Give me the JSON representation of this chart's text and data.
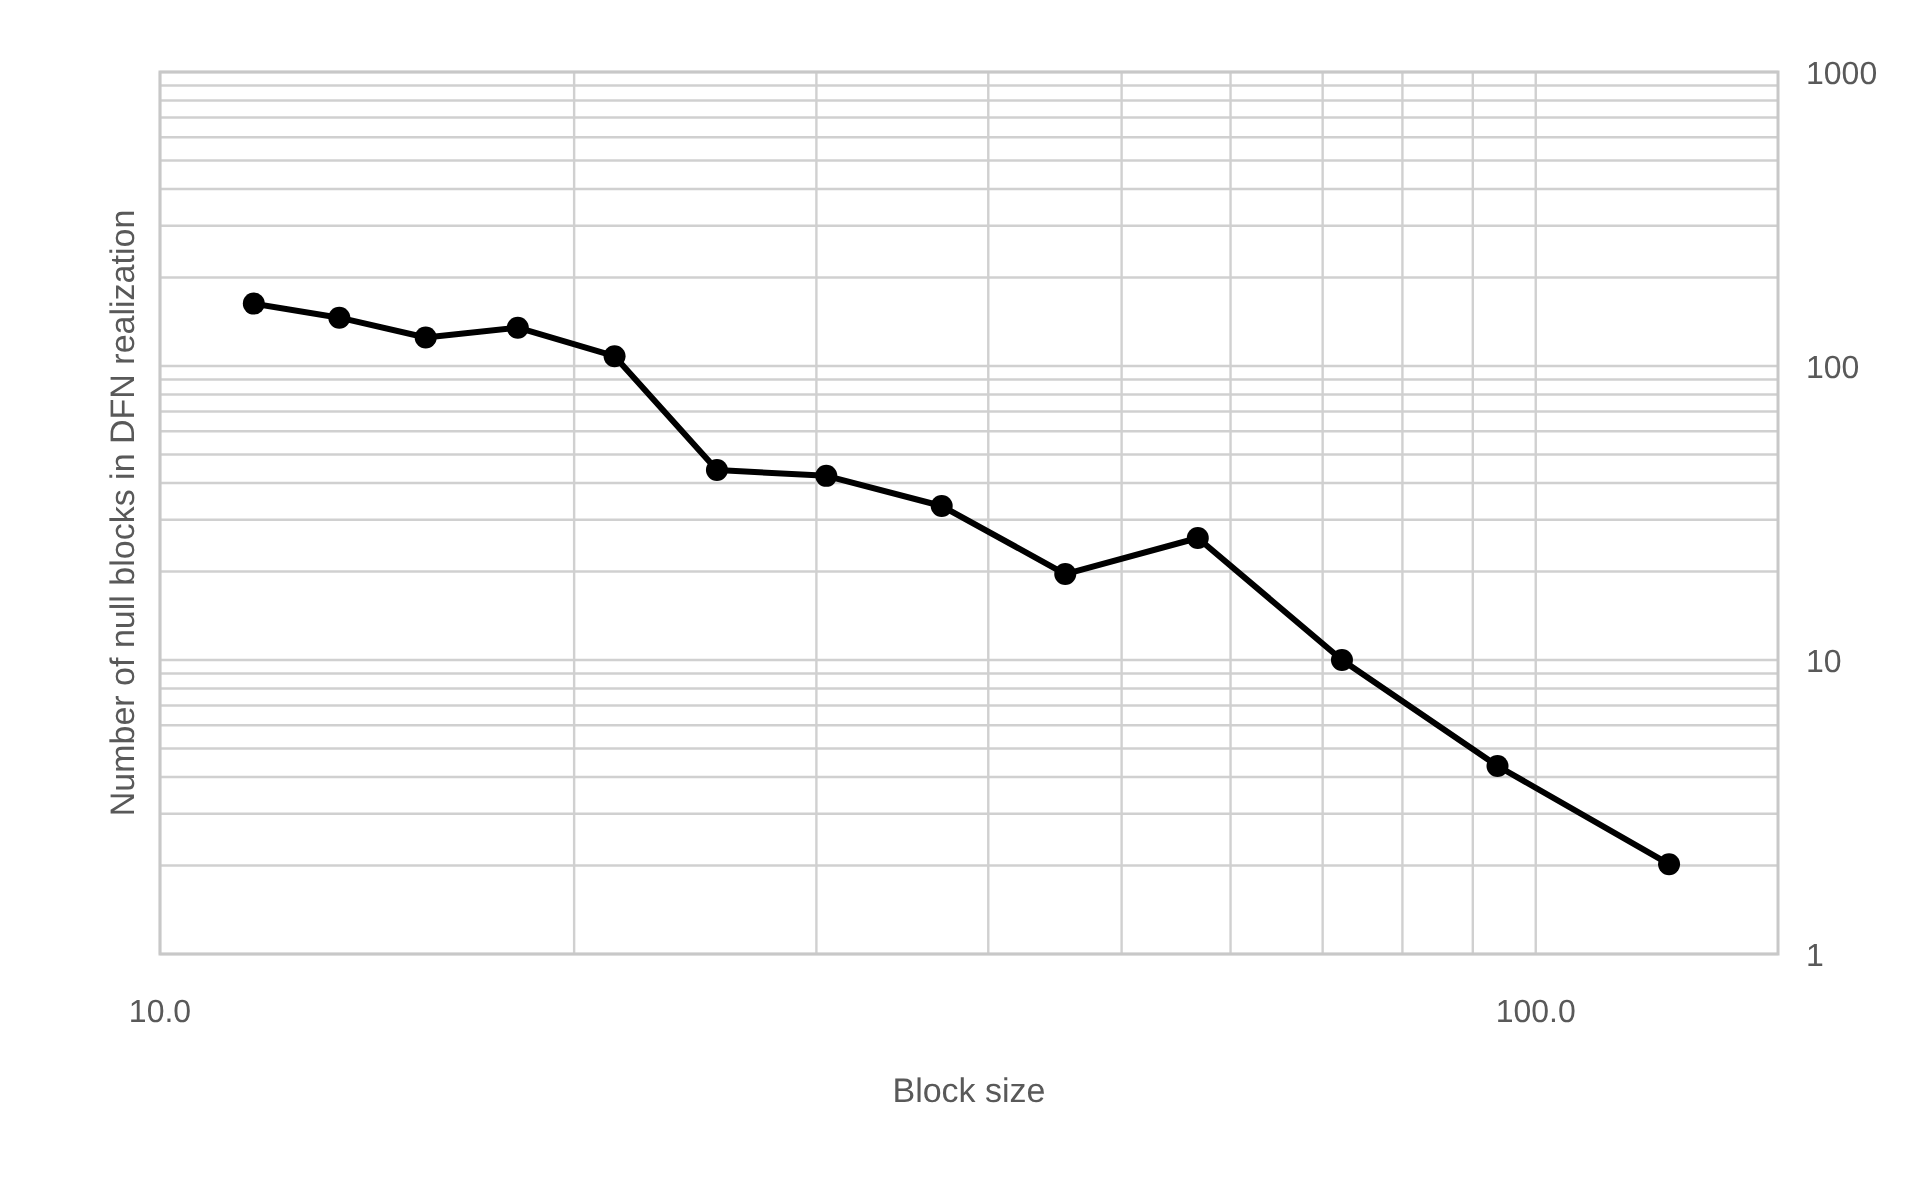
{
  "chart_data": {
    "type": "line",
    "xlabel": "Block size",
    "ylabel": "Number of null blocks in DFN realization",
    "x": [
      11.7,
      13.5,
      15.6,
      18.2,
      21.4,
      25.4,
      30.5,
      37.0,
      45.5,
      56.8,
      72.3,
      93.8,
      125
    ],
    "series": [
      {
        "color": "#000000",
        "values": [
          163,
          146,
          125,
          135,
          108,
          44.3,
          42.3,
          33.4,
          19.6,
          26.0,
          10.0,
          4.36,
          2.02
        ]
      }
    ],
    "log": "xy",
    "xlim": [
      10,
      150
    ],
    "ylim": [
      1,
      1000
    ],
    "xticks": [
      {
        "value": 10,
        "label": "10.0"
      },
      {
        "value": 20,
        "label": null
      },
      {
        "value": 30,
        "label": null
      },
      {
        "value": 40,
        "label": null
      },
      {
        "value": 50,
        "label": null
      },
      {
        "value": 60,
        "label": null
      },
      {
        "value": 70,
        "label": null
      },
      {
        "value": 80,
        "label": null
      },
      {
        "value": 90,
        "label": null
      },
      {
        "value": 100,
        "label": "100.0"
      }
    ],
    "yticks": [
      1,
      {
        "value": 2,
        "label": null
      },
      {
        "value": 3,
        "label": null
      },
      {
        "value": 4,
        "label": null
      },
      {
        "value": 5,
        "label": null
      },
      {
        "value": 6,
        "label": null
      },
      {
        "value": 7,
        "label": null
      },
      {
        "value": 8,
        "label": null
      },
      {
        "value": 9,
        "label": null
      },
      10,
      {
        "value": 20,
        "label": null
      },
      {
        "value": 30,
        "label": null
      },
      {
        "value": 40,
        "label": null
      },
      {
        "value": 50,
        "label": null
      },
      {
        "value": 60,
        "label": null
      },
      {
        "value": 70,
        "label": null
      },
      {
        "value": 80,
        "label": null
      },
      {
        "value": 90,
        "label": null
      },
      100,
      {
        "value": 200,
        "label": null
      },
      {
        "value": 300,
        "label": null
      },
      {
        "value": 400,
        "label": null
      },
      {
        "value": 500,
        "label": null
      },
      {
        "value": 600,
        "label": null
      },
      {
        "value": 700,
        "label": null
      },
      {
        "value": 800,
        "label": null
      },
      {
        "value": 900,
        "label": null
      },
      1000
    ],
    "grid": true,
    "marker": "circle",
    "line_style": "solid"
  }
}
